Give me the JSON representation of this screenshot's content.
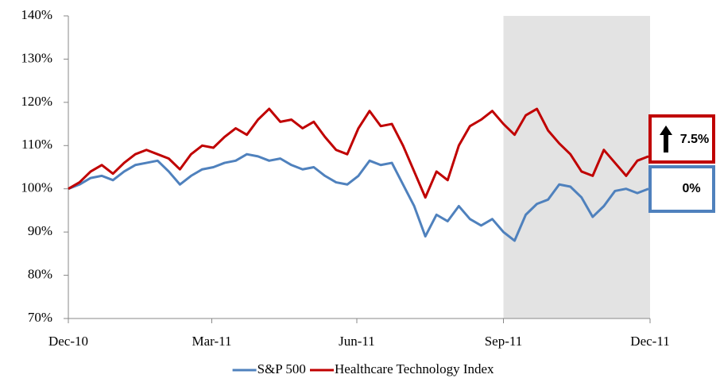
{
  "chart_data": {
    "type": "line",
    "x": [
      0,
      7,
      14,
      21,
      28,
      35,
      42,
      49,
      56,
      63,
      70,
      77,
      84,
      91,
      98,
      105,
      112,
      119,
      126,
      133,
      140,
      147,
      154,
      161,
      168,
      175,
      182,
      189,
      196,
      203,
      210,
      217,
      224,
      231,
      238,
      245,
      252,
      259,
      266,
      273,
      280,
      287,
      294,
      301,
      308,
      315,
      322,
      329,
      336,
      343,
      350,
      357,
      364
    ],
    "series": [
      {
        "name": "S&P 500",
        "color": "#4f81bd",
        "values": [
          100,
          101,
          102.5,
          103,
          102,
          104,
          105.5,
          106,
          106.5,
          104,
          101,
          103,
          104.5,
          105,
          106,
          106.5,
          108,
          107.5,
          106.5,
          107,
          105.5,
          104.5,
          105,
          103,
          101.5,
          101,
          103,
          106.5,
          105.5,
          106,
          101,
          96,
          89,
          94,
          92.5,
          96,
          93,
          91.5,
          93,
          90,
          88,
          94,
          96.5,
          97.5,
          101,
          100.5,
          98,
          93.5,
          96,
          99.5,
          100,
          99,
          100
        ]
      },
      {
        "name": "Healthcare Technology Index",
        "color": "#c00000",
        "values": [
          100,
          101.5,
          104,
          105.5,
          103.5,
          106,
          108,
          109,
          108,
          107,
          104.5,
          108,
          110,
          109.5,
          112,
          114,
          112.5,
          116,
          118.5,
          115.5,
          116,
          114,
          115.5,
          112,
          109,
          108,
          114,
          118,
          114.5,
          115,
          110,
          104,
          98,
          104,
          102,
          110,
          114.5,
          116,
          118,
          115,
          112.5,
          117,
          118.5,
          113.5,
          110.5,
          108,
          104,
          103,
          109,
          106,
          103,
          106.5,
          107.5
        ]
      }
    ],
    "xlim": [
      0,
      365
    ],
    "xticks": [
      {
        "value": 0,
        "label": "Dec-10"
      },
      {
        "value": 90,
        "label": "Mar-11"
      },
      {
        "value": 181,
        "label": "Jun-11"
      },
      {
        "value": 273,
        "label": "Sep-11"
      },
      {
        "value": 365,
        "label": "Dec-11"
      }
    ],
    "ylim": [
      70,
      140
    ],
    "yticks": [
      {
        "value": 70,
        "label": "70%"
      },
      {
        "value": 80,
        "label": "80%"
      },
      {
        "value": 90,
        "label": "90%"
      },
      {
        "value": 100,
        "label": "100%"
      },
      {
        "value": 110,
        "label": "110%"
      },
      {
        "value": 120,
        "label": "120%"
      },
      {
        "value": 130,
        "label": "130%"
      },
      {
        "value": 140,
        "label": "140%"
      }
    ],
    "grid": true,
    "shade": [
      273,
      365
    ],
    "legend": "bottom",
    "annotations": [
      "7.5%",
      "0%"
    ]
  }
}
